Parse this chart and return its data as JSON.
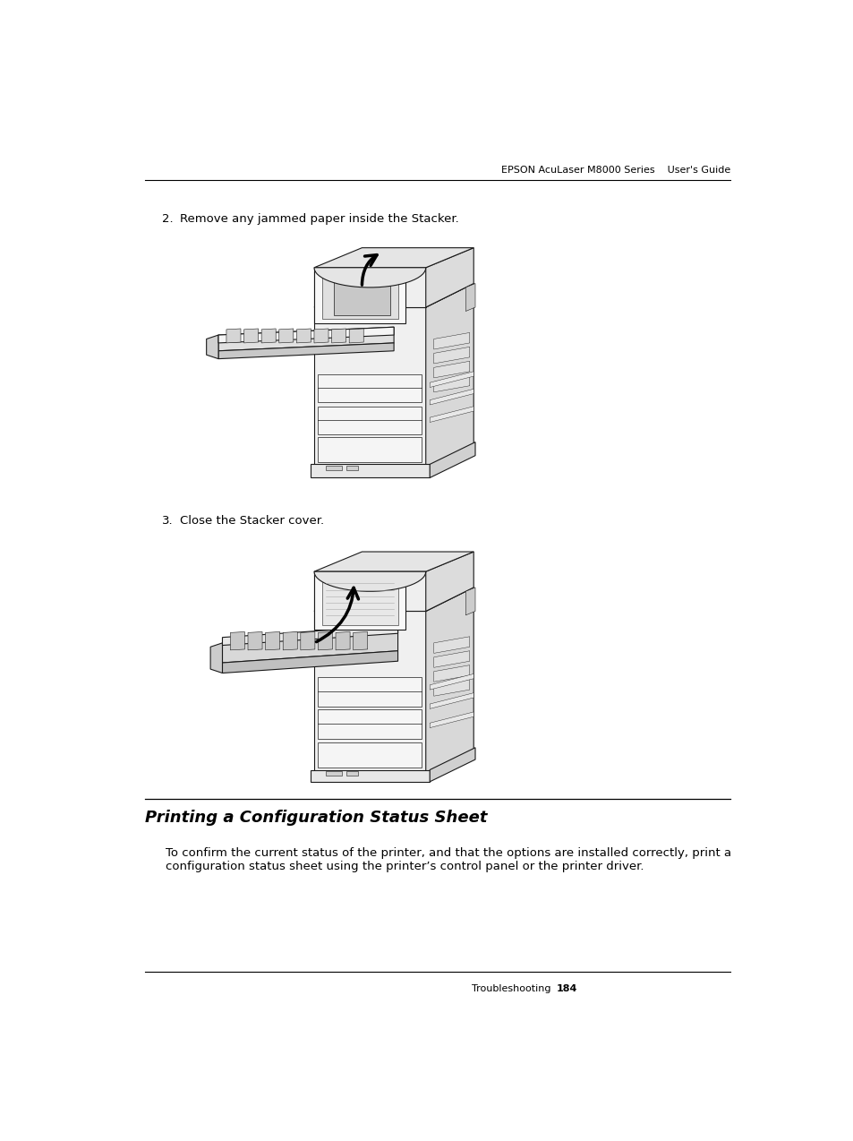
{
  "header_text": "EPSON AcuLaser M8000 Series    User's Guide",
  "footer_text_left": "Troubleshooting",
  "footer_page": "184",
  "step2_label": "2.",
  "step2_text": "Remove any jammed paper inside the Stacker.",
  "step3_label": "3.",
  "step3_text": "Close the Stacker cover.",
  "section_title": "Printing a Configuration Status Sheet",
  "section_body_line1": "To confirm the current status of the printer, and that the options are installed correctly, print a",
  "section_body_line2": "configuration status sheet using the printer’s control panel or the printer driver.",
  "bg_color": "#ffffff",
  "text_color": "#000000",
  "header_font_size": 8.0,
  "footer_font_size": 8.0,
  "step_font_size": 9.5,
  "section_title_font_size": 13,
  "section_body_font_size": 9.5
}
